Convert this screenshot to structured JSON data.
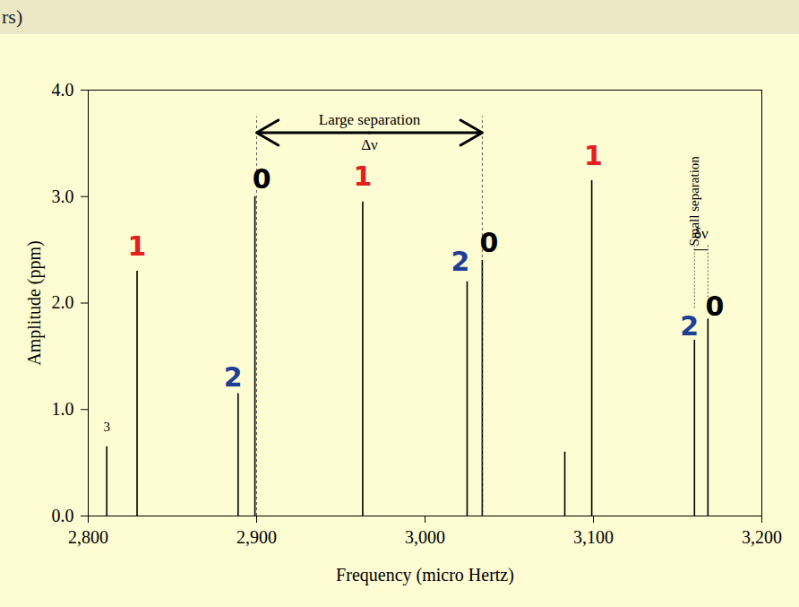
{
  "chart_data": {
    "type": "stem",
    "title": "rs)",
    "x_label": "Frequency (micro Hertz)",
    "y_label": "Amplitude (ppm)",
    "x": [
      2811,
      2829,
      2889,
      2899,
      2963,
      3025,
      3034,
      3083,
      3099,
      3160,
      3168
    ],
    "values": [
      0.65,
      2.3,
      1.15,
      3.0,
      2.95,
      2.2,
      2.4,
      0.6,
      3.15,
      1.65,
      1.85
    ],
    "color": "#000000",
    "xlim": [
      2800,
      3200
    ],
    "xticks": [
      2800,
      2900,
      3000,
      3100,
      3200
    ],
    "ylim": [
      0,
      4
    ],
    "yticks": [
      0,
      1,
      2,
      3,
      4
    ],
    "grid": false,
    "annotations": [
      {
        "text": "3",
        "x": 2811,
        "y": 0.8,
        "color": "#000000",
        "size": "small"
      },
      {
        "text": "1",
        "x": 2829,
        "y": 2.45,
        "color": "#e3201f",
        "size": "large"
      },
      {
        "text": "2",
        "x": 2886,
        "y": 1.22,
        "color": "#1f3f95",
        "size": "large"
      },
      {
        "text": "0",
        "x": 2903,
        "y": 3.08,
        "color": "#000000",
        "size": "large"
      },
      {
        "text": "1",
        "x": 2963,
        "y": 3.1,
        "color": "#e3201f",
        "size": "large"
      },
      {
        "text": "2",
        "x": 3021,
        "y": 2.3,
        "color": "#1f3f95",
        "size": "large"
      },
      {
        "text": "0",
        "x": 3038,
        "y": 2.48,
        "color": "#000000",
        "size": "large"
      },
      {
        "text": "1",
        "x": 3100,
        "y": 3.3,
        "color": "#e3201f",
        "size": "large"
      },
      {
        "text": "2",
        "x": 3157,
        "y": 1.7,
        "color": "#1f3f95",
        "size": "large"
      },
      {
        "text": "0",
        "x": 3172,
        "y": 1.88,
        "color": "#000000",
        "size": "large"
      }
    ],
    "large_separation": {
      "label": "Large separation",
      "symbol": "Δν",
      "from": 2900,
      "to": 3034,
      "y": 3.6
    },
    "small_separation": {
      "label": "Small separation",
      "symbol": "δν",
      "from": 3160,
      "to": 3168,
      "y": 2.55
    }
  }
}
